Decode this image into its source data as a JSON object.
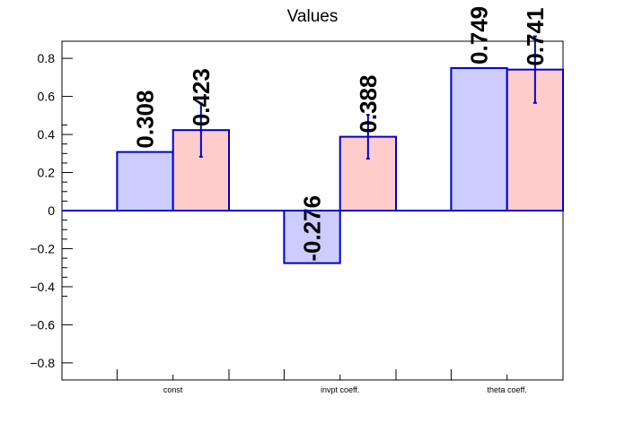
{
  "chart_data": {
    "type": "bar",
    "title": "Values",
    "categories": [
      "const",
      "invpt coeff.",
      "theta coeff."
    ],
    "series": [
      {
        "color": "#ccccff",
        "values": [
          0.308,
          -0.276,
          0.749
        ],
        "labels": [
          "0.308",
          "-0.276",
          "0.749"
        ]
      },
      {
        "color": "#ffcccc",
        "values": [
          0.423,
          0.388,
          0.741
        ],
        "errors": [
          0.14,
          0.115,
          0.175
        ],
        "labels": [
          "0.423",
          "0.388",
          "0.741"
        ]
      }
    ],
    "ylim": [
      -0.89,
      0.89
    ],
    "yticks": [
      -0.8,
      -0.6,
      -0.4,
      -0.2,
      0,
      0.2,
      0.4,
      0.6,
      0.8
    ],
    "ytick_labels": [
      "−0.8",
      "−0.6",
      "−0.4",
      "−0.2",
      "0",
      "0.2",
      "0.4",
      "0.6",
      "0.8"
    ],
    "grid": false,
    "legend": "none",
    "bar_edge_color": "#0000cc"
  }
}
